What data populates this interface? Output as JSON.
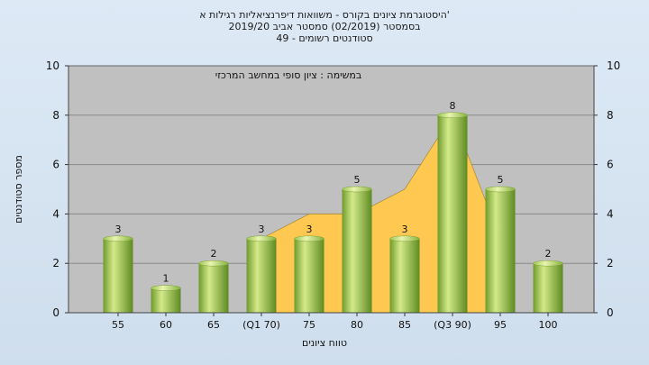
{
  "titles": {
    "line1": "היסטוגרמת ציונים בקורס - משוואות דיפרנציאליות רגילות א'",
    "line2": "בסמסטר  (02/2019)  סמסטר אביב 2019/20",
    "line3": "סטודנטים רשומים - 49"
  },
  "chart_data": {
    "type": "bar",
    "title": "היסטוגרמת ציונים בקורס - משוואות דיפרנציאליות רגילות א'",
    "annotation": "במשימה : ציון סופי במחשב המרכזי",
    "xlabel": "טווח ציונים",
    "ylabel": "מספר סטודנטים",
    "ylim": [
      0,
      10
    ],
    "yticks": [
      0,
      2,
      4,
      6,
      8,
      10
    ],
    "categories": [
      "55",
      "60",
      "65",
      "(Q1 70)",
      "75",
      "80",
      "85",
      "(Q3 90)",
      "95",
      "100"
    ],
    "values": [
      3,
      1,
      2,
      3,
      3,
      5,
      3,
      8,
      5,
      2
    ],
    "area_values": [
      null,
      null,
      null,
      3,
      4,
      4,
      5,
      8,
      3,
      null
    ],
    "grid": true,
    "colors": {
      "plot_bg": "#c0c0c0",
      "bar_light": "#d4ea8a",
      "bar_dark": "#6f9a2c",
      "area": "#ffc850",
      "grid": "#8a8a8a"
    }
  }
}
